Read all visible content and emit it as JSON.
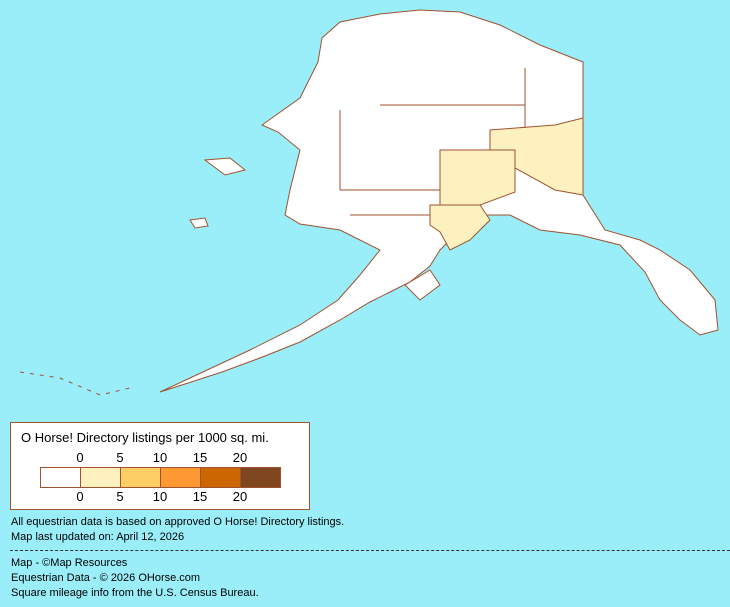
{
  "map": {
    "region": "Alaska",
    "colors": {
      "water": "#99eefa",
      "land": "#ffffff",
      "border": "#a0522d",
      "class_0_5": "#fdf2bf"
    }
  },
  "legend": {
    "title": "O Horse! Directory listings per 1000 sq. mi.",
    "top_ticks": [
      "0",
      "5",
      "10",
      "15",
      "20"
    ],
    "bottom_ticks": [
      "0",
      "5",
      "10",
      "15",
      "20"
    ],
    "colors": [
      "#ffffff",
      "#fdf2bf",
      "#fdcd66",
      "#fd9933",
      "#cc6600",
      "#7f4720"
    ]
  },
  "notes": {
    "data_basis": "All equestrian data is based on approved O Horse! Directory listings.",
    "updated": "Map last updated on: April 12, 2026",
    "map_credit": "Map - ©Map Resources",
    "data_credit": "Equestrian Data - © 2026 OHorse.com",
    "census": "Square mileage info from the U.S. Census Bureau."
  }
}
